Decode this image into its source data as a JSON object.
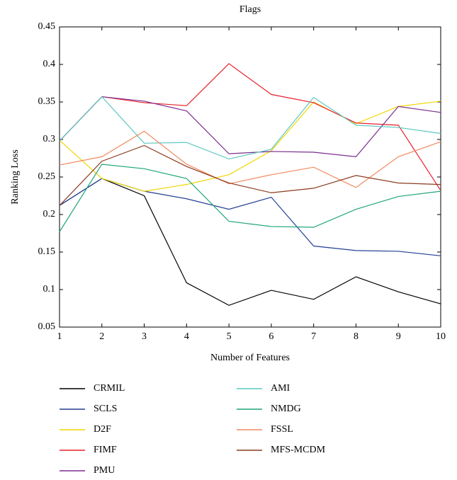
{
  "chart_data": {
    "type": "line",
    "title": "Flags",
    "x_label": "Number of Features",
    "y_label": "Ranking Loss",
    "x": [
      1,
      2,
      3,
      4,
      5,
      6,
      7,
      8,
      9,
      10
    ],
    "xlim": [
      1,
      10
    ],
    "xticks": [
      1,
      2,
      3,
      4,
      5,
      6,
      7,
      8,
      9,
      10
    ],
    "ylim": [
      0.05,
      0.45
    ],
    "yticks": [
      0.05,
      0.1,
      0.15,
      0.2,
      0.25,
      0.3,
      0.35,
      0.4,
      0.45
    ],
    "grid": false,
    "legend": "bottom",
    "series": [
      {
        "name": "CRMIL",
        "color": "#000000",
        "values": [
          0.212,
          0.248,
          0.225,
          0.109,
          0.079,
          0.099,
          0.087,
          0.117,
          0.097,
          0.081
        ]
      },
      {
        "name": "SCLS",
        "color": "#233f94",
        "values": [
          0.212,
          0.248,
          0.231,
          0.221,
          0.207,
          0.223,
          0.158,
          0.152,
          0.151,
          0.145
        ]
      },
      {
        "name": "D2F",
        "color": "#f2d600",
        "values": [
          0.299,
          0.248,
          0.231,
          0.24,
          0.253,
          0.285,
          0.35,
          0.321,
          0.344,
          0.351
        ]
      },
      {
        "name": "FIMF",
        "color": "#e8202a",
        "values": [
          0.298,
          0.357,
          0.349,
          0.345,
          0.401,
          0.36,
          0.349,
          0.322,
          0.319,
          0.232
        ]
      },
      {
        "name": "PMU",
        "color": "#7b2d8e",
        "values": [
          0.298,
          0.357,
          0.351,
          0.338,
          0.281,
          0.284,
          0.283,
          0.277,
          0.344,
          0.336
        ]
      },
      {
        "name": "AMI",
        "color": "#5cc7c0",
        "values": [
          0.298,
          0.357,
          0.295,
          0.296,
          0.274,
          0.287,
          0.356,
          0.319,
          0.316,
          0.308
        ]
      },
      {
        "name": "NMDG",
        "color": "#1fa67a",
        "values": [
          0.177,
          0.267,
          0.261,
          0.248,
          0.191,
          0.184,
          0.183,
          0.207,
          0.224,
          0.231
        ]
      },
      {
        "name": "FSSL",
        "color": "#f08a5d",
        "values": [
          0.266,
          0.277,
          0.311,
          0.267,
          0.241,
          0.253,
          0.263,
          0.236,
          0.277,
          0.297
        ]
      },
      {
        "name": "MFS-MCDM",
        "color": "#8b3a1e",
        "values": [
          0.212,
          0.271,
          0.292,
          0.264,
          0.242,
          0.229,
          0.235,
          0.252,
          0.242,
          0.24
        ]
      }
    ]
  }
}
